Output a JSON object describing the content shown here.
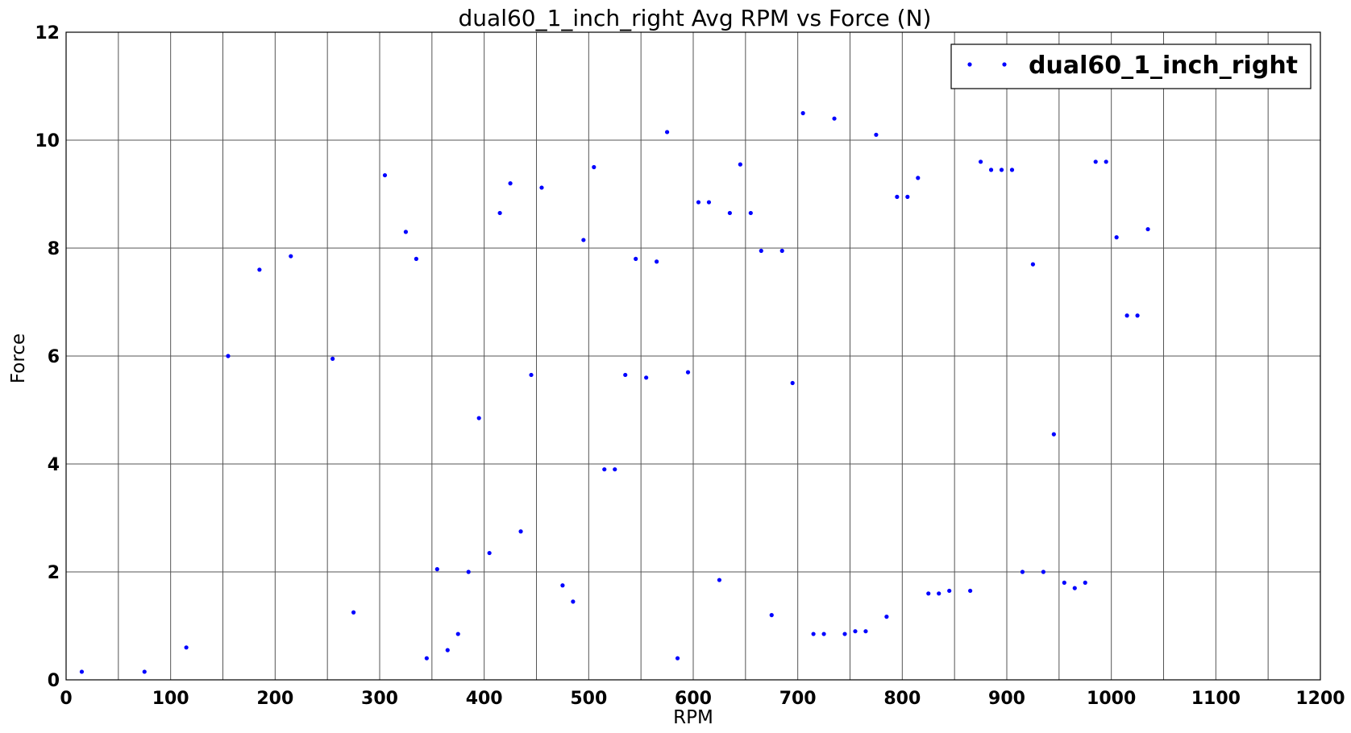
{
  "chart_data": {
    "type": "scatter",
    "title": "dual60_1_inch_right Avg RPM vs Force (N)",
    "xlabel": "RPM",
    "ylabel": "Force",
    "xlim": [
      0,
      1200
    ],
    "ylim": [
      0,
      12
    ],
    "xticks": [
      "0",
      "100",
      "200",
      "300",
      "400",
      "500",
      "600",
      "700",
      "800",
      "900",
      "1000",
      "1100",
      "1200"
    ],
    "yticks": [
      "0",
      "2",
      "4",
      "6",
      "8",
      "10",
      "12"
    ],
    "grid": true,
    "x_grid_step": 50,
    "legend_position": "top-right",
    "color": "#0000ff",
    "series": [
      {
        "name": "dual60_1_inch_right",
        "points": [
          [
            15,
            0.15
          ],
          [
            75,
            0.15
          ],
          [
            115,
            0.6
          ],
          [
            155,
            6.0
          ],
          [
            185,
            7.6
          ],
          [
            215,
            7.85
          ],
          [
            255,
            5.95
          ],
          [
            275,
            1.25
          ],
          [
            305,
            9.35
          ],
          [
            325,
            8.3
          ],
          [
            335,
            7.8
          ],
          [
            345,
            0.4
          ],
          [
            355,
            2.05
          ],
          [
            365,
            0.55
          ],
          [
            375,
            0.85
          ],
          [
            385,
            2.0
          ],
          [
            395,
            4.85
          ],
          [
            405,
            2.35
          ],
          [
            415,
            8.65
          ],
          [
            425,
            9.2
          ],
          [
            435,
            2.75
          ],
          [
            445,
            5.65
          ],
          [
            455,
            9.12
          ],
          [
            475,
            1.75
          ],
          [
            485,
            1.45
          ],
          [
            495,
            8.15
          ],
          [
            505,
            9.5
          ],
          [
            515,
            3.9
          ],
          [
            525,
            3.9
          ],
          [
            535,
            5.65
          ],
          [
            545,
            7.8
          ],
          [
            555,
            5.6
          ],
          [
            565,
            7.75
          ],
          [
            575,
            10.15
          ],
          [
            585,
            0.4
          ],
          [
            595,
            5.7
          ],
          [
            605,
            8.85
          ],
          [
            615,
            8.85
          ],
          [
            625,
            1.85
          ],
          [
            635,
            8.65
          ],
          [
            645,
            9.55
          ],
          [
            655,
            8.65
          ],
          [
            665,
            7.95
          ],
          [
            675,
            1.2
          ],
          [
            685,
            7.95
          ],
          [
            695,
            5.5
          ],
          [
            705,
            10.5
          ],
          [
            715,
            0.85
          ],
          [
            725,
            0.85
          ],
          [
            735,
            10.4
          ],
          [
            745,
            0.85
          ],
          [
            755,
            0.9
          ],
          [
            765,
            0.9
          ],
          [
            775,
            10.1
          ],
          [
            785,
            1.17
          ],
          [
            795,
            8.95
          ],
          [
            805,
            8.95
          ],
          [
            815,
            9.3
          ],
          [
            825,
            1.6
          ],
          [
            835,
            1.6
          ],
          [
            845,
            1.65
          ],
          [
            865,
            1.65
          ],
          [
            875,
            9.6
          ],
          [
            885,
            9.45
          ],
          [
            895,
            9.45
          ],
          [
            905,
            9.45
          ],
          [
            915,
            2.0
          ],
          [
            925,
            7.7
          ],
          [
            935,
            2.0
          ],
          [
            945,
            4.55
          ],
          [
            955,
            1.8
          ],
          [
            965,
            1.7
          ],
          [
            975,
            1.8
          ],
          [
            985,
            9.6
          ],
          [
            995,
            9.6
          ],
          [
            1005,
            8.2
          ],
          [
            1015,
            6.75
          ],
          [
            1025,
            6.75
          ],
          [
            1035,
            8.35
          ]
        ]
      }
    ]
  }
}
